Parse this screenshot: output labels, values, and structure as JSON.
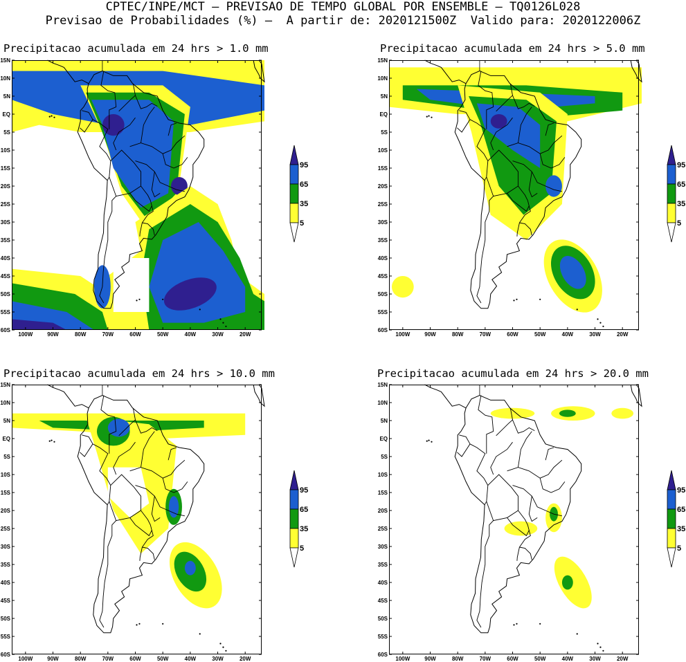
{
  "header": {
    "line1": "CPTEC/INPE/MCT – PREVISAO DE TEMPO GLOBAL POR ENSEMBLE – TQ0126L028",
    "line2": "Previsao de Probabilidades (%) –  A partir de: 2020121500Z  Valido para: 2020122006Z"
  },
  "colors": {
    "p5": "#ffff33",
    "p35": "#119911",
    "p65": "#1c5fd0",
    "p95": "#2f1f8f",
    "land_lines": "#000000",
    "background": "#ffffff"
  },
  "axes": {
    "lat_labels": [
      "15N",
      "10N",
      "5N",
      "EQ",
      "5S",
      "10S",
      "15S",
      "20S",
      "25S",
      "30S",
      "35S",
      "40S",
      "45S",
      "50S",
      "55S",
      "60S"
    ],
    "lon_labels": [
      "100W",
      "90W",
      "80W",
      "70W",
      "60W",
      "50W",
      "40W",
      "30W",
      "20W"
    ]
  },
  "colorbar": {
    "levels": [
      "95",
      "65",
      "35",
      "5"
    ]
  },
  "panels": [
    {
      "title": "Precipitacao acumulada em 24 hrs > 1.0 mm"
    },
    {
      "title": "Precipitacao acumulada em 24 hrs > 5.0 mm"
    },
    {
      "title": "Precipitacao acumulada em 24 hrs > 10.0 mm"
    },
    {
      "title": "Precipitacao acumulada em 24 hrs > 20.0 mm"
    }
  ]
}
